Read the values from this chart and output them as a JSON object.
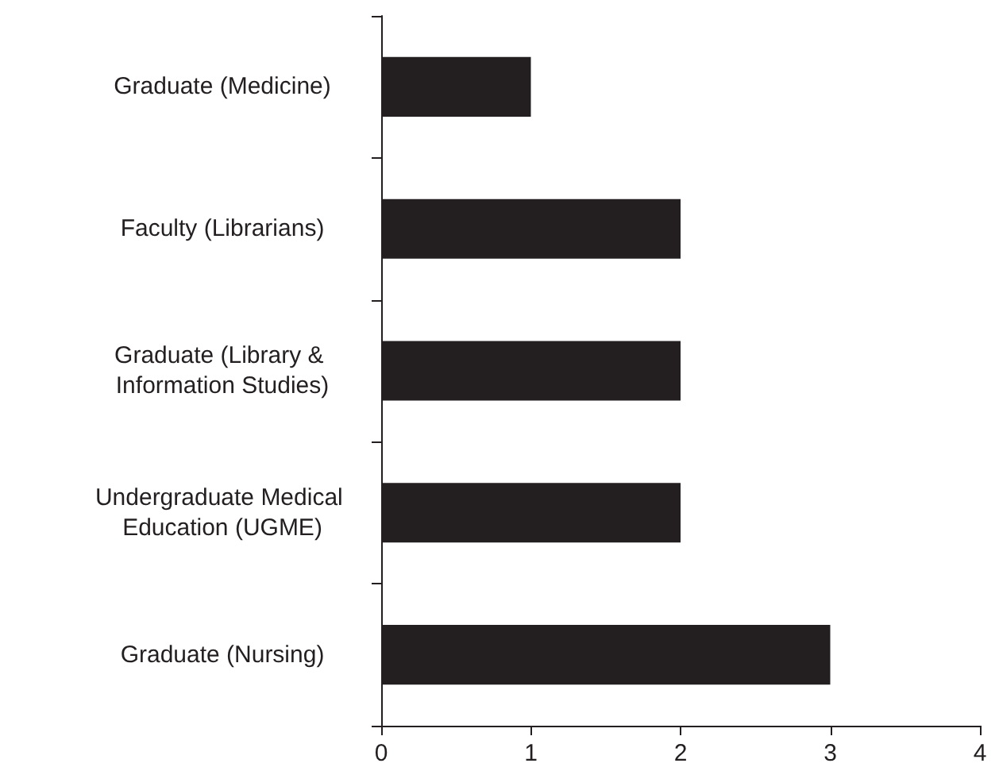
{
  "chart_data": {
    "type": "bar",
    "orientation": "horizontal",
    "categories": [
      "Graduate (Medicine)",
      "Faculty (Librarians)",
      "Graduate (Library & Information Studies)",
      "Undergraduate Medical Education (UGME)",
      "Graduate (Nursing)"
    ],
    "values": [
      1,
      2,
      2,
      2,
      3
    ],
    "color": "#231f20",
    "xlim": [
      0,
      4
    ],
    "xticks": [
      0,
      1,
      2,
      3,
      4
    ],
    "grid": false
  }
}
